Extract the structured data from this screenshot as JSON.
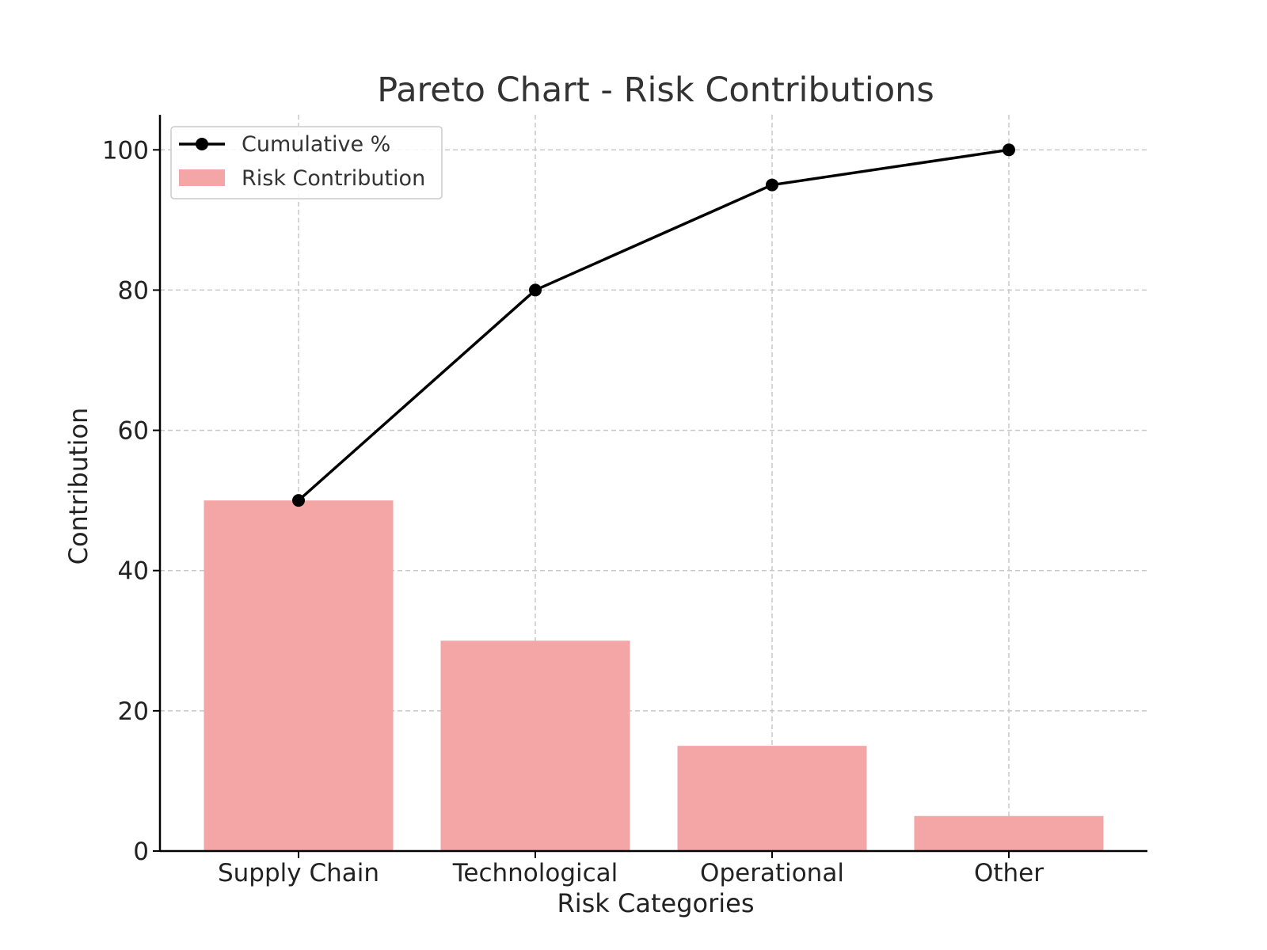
{
  "chart_data": {
    "type": "bar",
    "title": "Pareto Chart - Risk Contributions",
    "xlabel": "Risk Categories",
    "ylabel": "Contribution",
    "categories": [
      "Supply Chain",
      "Technological",
      "Operational",
      "Other"
    ],
    "ylim": [
      0,
      105
    ],
    "yticks": [
      0,
      20,
      40,
      60,
      80,
      100
    ],
    "grid": true,
    "legend_position": "upper-left",
    "series": [
      {
        "name": "Risk Contribution",
        "type": "bar",
        "color": "#f4a6a6",
        "values": [
          50,
          30,
          15,
          5
        ]
      },
      {
        "name": "Cumulative %",
        "type": "line",
        "color": "#000000",
        "marker": "circle",
        "values": [
          50,
          80,
          95,
          100
        ]
      }
    ]
  }
}
